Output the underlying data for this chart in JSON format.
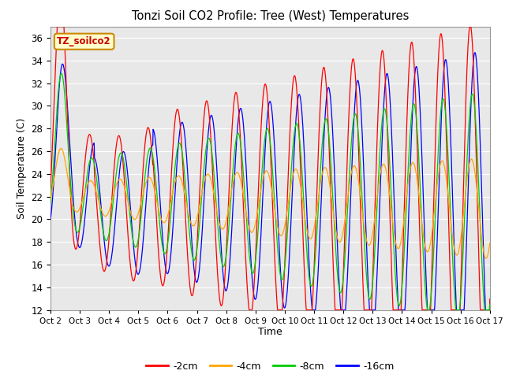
{
  "title": "Tonzi Soil CO2 Profile: Tree (West) Temperatures",
  "xlabel": "Time",
  "ylabel": "Soil Temperature (C)",
  "ylim": [
    12,
    37
  ],
  "yticks": [
    12,
    14,
    16,
    18,
    20,
    22,
    24,
    26,
    28,
    30,
    32,
    34,
    36
  ],
  "colors": {
    "-2cm": "#ff0000",
    "-4cm": "#ffa500",
    "-8cm": "#00cc00",
    "-16cm": "#0000ff"
  },
  "legend_label": "TZ_soilco2",
  "legend_box_facecolor": "#ffffcc",
  "legend_box_edge": "#cc8800",
  "background_color": "#e8e8e8",
  "grid_color": "#ffffff",
  "x_start": 2.0,
  "x_end": 17.0,
  "xtick_positions": [
    2,
    3,
    4,
    5,
    6,
    7,
    8,
    9,
    10,
    11,
    12,
    13,
    14,
    15,
    16,
    17
  ],
  "xtick_labels": [
    "Oct 2",
    "Oct 3",
    "Oct 4",
    "Oct 5",
    "Oct 6",
    "Oct 7",
    "Oct 8",
    "Oct 9",
    "Oct 10",
    "Oct 11",
    "Oct 12",
    "Oct 13",
    "Oct 14",
    "Oct 15",
    "Oct 16",
    "Oct 17"
  ]
}
